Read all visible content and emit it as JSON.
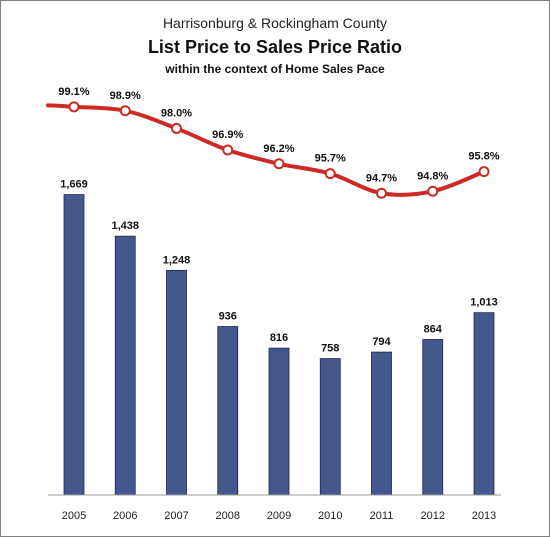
{
  "chart_data": {
    "type": "bar",
    "title_line1": "Harrisonburg & Rockingham County",
    "title": "List Price to Sales Price Ratio",
    "subtitle": "within the context of Home Sales Pace",
    "categories": [
      "2005",
      "2006",
      "2007",
      "2008",
      "2009",
      "2010",
      "2011",
      "2012",
      "2013"
    ],
    "series": [
      {
        "kind": "bar",
        "values": [
          1669,
          1438,
          1248,
          936,
          816,
          758,
          794,
          864,
          1013
        ],
        "labels": [
          "1,669",
          "1,438",
          "1,248",
          "936",
          "816",
          "758",
          "794",
          "864",
          "1,013"
        ],
        "color": "#44588e"
      },
      {
        "kind": "line",
        "values": [
          99.1,
          98.9,
          98.0,
          96.9,
          96.2,
          95.7,
          94.7,
          94.8,
          95.8
        ],
        "labels": [
          "99.1%",
          "98.9%",
          "98.0%",
          "96.9%",
          "96.2%",
          "95.7%",
          "94.7%",
          "94.8%",
          "95.8%"
        ],
        "color": "#cc2a24"
      }
    ],
    "bar_ylim": [
      0,
      1800
    ],
    "line_ylim": [
      94.0,
      99.6
    ],
    "grid": false,
    "legend": "none"
  }
}
